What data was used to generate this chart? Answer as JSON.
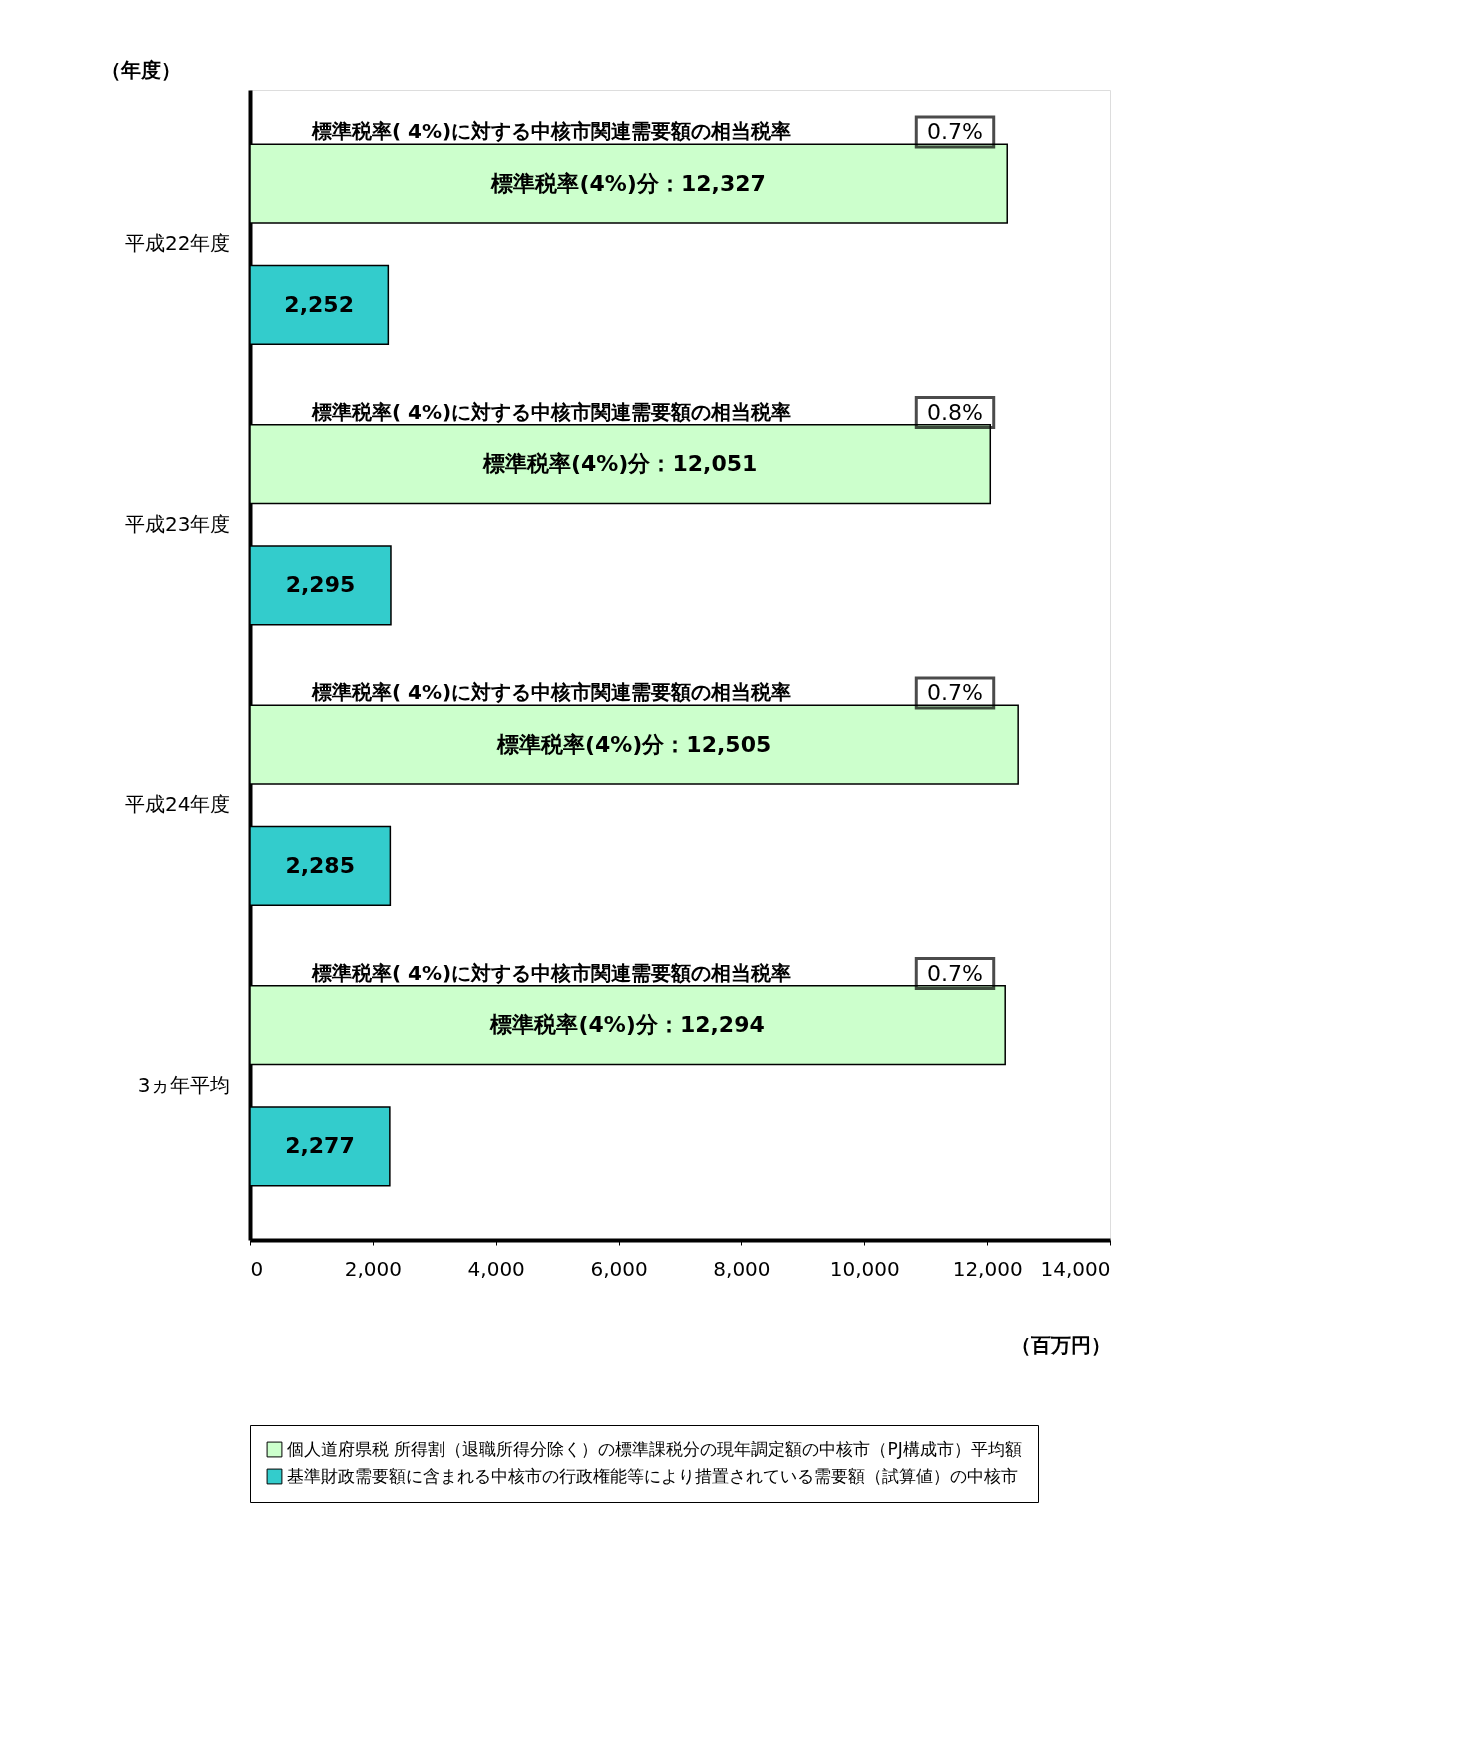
{
  "chart_data": {
    "type": "bar",
    "orientation": "horizontal",
    "categories": [
      "平成22年度",
      "平成23年度",
      "平成24年度",
      "3ヵ年平均"
    ],
    "series": [
      {
        "name": "個人道府県税 所得割（退職所得分除く）の標準課税分の現年調定額の中核市（PJ構成市）平均額",
        "color": "#ccffcc",
        "values": [
          12327,
          12051,
          12505,
          12294
        ],
        "value_labels": [
          "標準税率(4%)分：12,327",
          "標準税率(4%)分：12,051",
          "標準税率(4%)分：12,505",
          "標準税率(4%)分：12,294"
        ]
      },
      {
        "name": "基準財政需要額に含まれる中核市の行政権能等により措置されている需要額（試算値）の中核市",
        "color": "#33cccc",
        "values": [
          2252,
          2295,
          2285,
          2277
        ],
        "value_labels": [
          "2,252",
          "2,295",
          "2,285",
          "2,277"
        ]
      }
    ],
    "ylabel": "（年度）",
    "xlabel": "（百万円）",
    "xlim": [
      0,
      14000
    ],
    "xticks": [
      0,
      {
        "value": 2000,
        "label": "2,000"
      },
      {
        "value": 4000,
        "label": "4,000"
      },
      {
        "value": 6000,
        "label": "6,000"
      },
      {
        "value": 8000,
        "label": "8,000"
      },
      {
        "value": 10000,
        "label": "10,000"
      },
      {
        "value": 12000,
        "label": "12,000"
      },
      {
        "value": 14000,
        "label": "14,000"
      }
    ],
    "grid": false,
    "legend": "bottom",
    "annotations": [
      "標準税率( 4%)に対する中核市関連需要額の相当税率",
      "0.7%",
      "標準税率( 4%)に対する中核市関連需要額の相当税率",
      "0.8%",
      "標準税率( 4%)に対する中核市関連需要額の相当税率",
      "0.7%",
      "標準税率( 4%)に対する中核市関連需要額の相当税率",
      "0.7%"
    ]
  }
}
